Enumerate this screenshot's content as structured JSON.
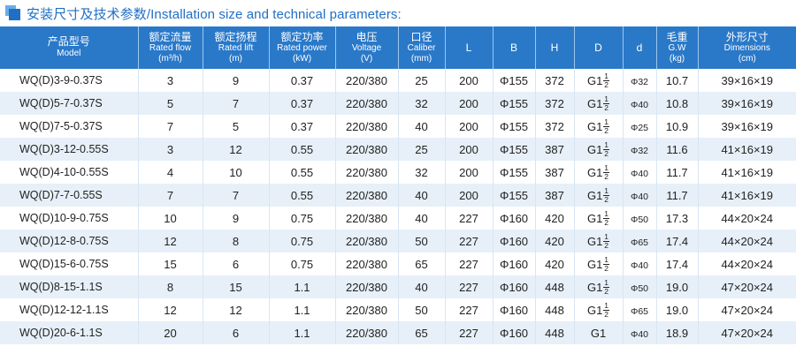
{
  "title": "安装尺寸及技术参数/Installation size and technical parameters:",
  "headers": [
    {
      "cn": "产品型号",
      "en": "Model"
    },
    {
      "cn": "额定流量",
      "en": "Rated flow",
      "unit": "(m³/h)"
    },
    {
      "cn": "额定扬程",
      "en": "Rated lift",
      "unit": "(m)"
    },
    {
      "cn": "额定功率",
      "en": "Rated power",
      "unit": "(kW)"
    },
    {
      "cn": "电压",
      "en": "Voltage",
      "unit": "(V)"
    },
    {
      "cn": "口径",
      "en": "Caliber",
      "unit": "(mm)"
    },
    {
      "cn": "L"
    },
    {
      "cn": "B"
    },
    {
      "cn": "H"
    },
    {
      "cn": "D"
    },
    {
      "cn": "d"
    },
    {
      "cn": "毛重",
      "en": "G.W",
      "unit": "(kg)"
    },
    {
      "cn": "外形尺寸",
      "en": "Dimensions",
      "unit": "(cm)"
    }
  ],
  "rows": [
    {
      "model": "WQ(D)3-9-0.37S",
      "flow": "3",
      "lift": "9",
      "power": "0.37",
      "voltage": "220/380",
      "caliber": "25",
      "L": "200",
      "B": "Φ155",
      "H": "372",
      "D_main": "G1",
      "D_num": "1",
      "D_den": "2",
      "d": "Φ32",
      "gw": "10.7",
      "dim": "39×16×19"
    },
    {
      "model": "WQ(D)5-7-0.37S",
      "flow": "5",
      "lift": "7",
      "power": "0.37",
      "voltage": "220/380",
      "caliber": "32",
      "L": "200",
      "B": "Φ155",
      "H": "372",
      "D_main": "G1",
      "D_num": "1",
      "D_den": "2",
      "d": "Φ40",
      "gw": "10.8",
      "dim": "39×16×19"
    },
    {
      "model": "WQ(D)7-5-0.37S",
      "flow": "7",
      "lift": "5",
      "power": "0.37",
      "voltage": "220/380",
      "caliber": "40",
      "L": "200",
      "B": "Φ155",
      "H": "372",
      "D_main": "G1",
      "D_num": "1",
      "D_den": "2",
      "d": "Φ25",
      "gw": "10.9",
      "dim": "39×16×19"
    },
    {
      "model": "WQ(D)3-12-0.55S",
      "flow": "3",
      "lift": "12",
      "power": "0.55",
      "voltage": "220/380",
      "caliber": "25",
      "L": "200",
      "B": "Φ155",
      "H": "387",
      "D_main": "G1",
      "D_num": "1",
      "D_den": "2",
      "d": "Φ32",
      "gw": "11.6",
      "dim": "41×16×19"
    },
    {
      "model": "WQ(D)4-10-0.55S",
      "flow": "4",
      "lift": "10",
      "power": "0.55",
      "voltage": "220/380",
      "caliber": "32",
      "L": "200",
      "B": "Φ155",
      "H": "387",
      "D_main": "G1",
      "D_num": "1",
      "D_den": "2",
      "d": "Φ40",
      "gw": "11.7",
      "dim": "41×16×19"
    },
    {
      "model": "WQ(D)7-7-0.55S",
      "flow": "7",
      "lift": "7",
      "power": "0.55",
      "voltage": "220/380",
      "caliber": "40",
      "L": "200",
      "B": "Φ155",
      "H": "387",
      "D_main": "G1",
      "D_num": "1",
      "D_den": "2",
      "d": "Φ40",
      "gw": "11.7",
      "dim": "41×16×19"
    },
    {
      "model": "WQ(D)10-9-0.75S",
      "flow": "10",
      "lift": "9",
      "power": "0.75",
      "voltage": "220/380",
      "caliber": "40",
      "L": "227",
      "B": "Φ160",
      "H": "420",
      "D_main": "G1",
      "D_num": "1",
      "D_den": "2",
      "d": "Φ50",
      "gw": "17.3",
      "dim": "44×20×24"
    },
    {
      "model": "WQ(D)12-8-0.75S",
      "flow": "12",
      "lift": "8",
      "power": "0.75",
      "voltage": "220/380",
      "caliber": "50",
      "L": "227",
      "B": "Φ160",
      "H": "420",
      "D_main": "G1",
      "D_num": "1",
      "D_den": "2",
      "d": "Φ65",
      "gw": "17.4",
      "dim": "44×20×24"
    },
    {
      "model": "WQ(D)15-6-0.75S",
      "flow": "15",
      "lift": "6",
      "power": "0.75",
      "voltage": "220/380",
      "caliber": "65",
      "L": "227",
      "B": "Φ160",
      "H": "420",
      "D_main": "G1",
      "D_num": "1",
      "D_den": "2",
      "d": "Φ40",
      "gw": "17.4",
      "dim": "44×20×24"
    },
    {
      "model": "WQ(D)8-15-1.1S",
      "flow": "8",
      "lift": "15",
      "power": "1.1",
      "voltage": "220/380",
      "caliber": "40",
      "L": "227",
      "B": "Φ160",
      "H": "448",
      "D_main": "G1",
      "D_num": "1",
      "D_den": "2",
      "d": "Φ50",
      "gw": "19.0",
      "dim": "47×20×24"
    },
    {
      "model": "WQ(D)12-12-1.1S",
      "flow": "12",
      "lift": "12",
      "power": "1.1",
      "voltage": "220/380",
      "caliber": "50",
      "L": "227",
      "B": "Φ160",
      "H": "448",
      "D_main": "G1",
      "D_num": "1",
      "D_den": "2",
      "d": "Φ65",
      "gw": "19.0",
      "dim": "47×20×24"
    },
    {
      "model": "WQ(D)20-6-1.1S",
      "flow": "20",
      "lift": "6",
      "power": "1.1",
      "voltage": "220/380",
      "caliber": "65",
      "L": "227",
      "B": "Φ160",
      "H": "448",
      "D_main": "G1",
      "D_num": "",
      "D_den": "",
      "d": "Φ40",
      "gw": "18.9",
      "dim": "47×20×24"
    }
  ],
  "colors": {
    "title": "#1f6fc5",
    "header_bg": "#2a79c9",
    "row_alt": "#e7f0f8"
  }
}
